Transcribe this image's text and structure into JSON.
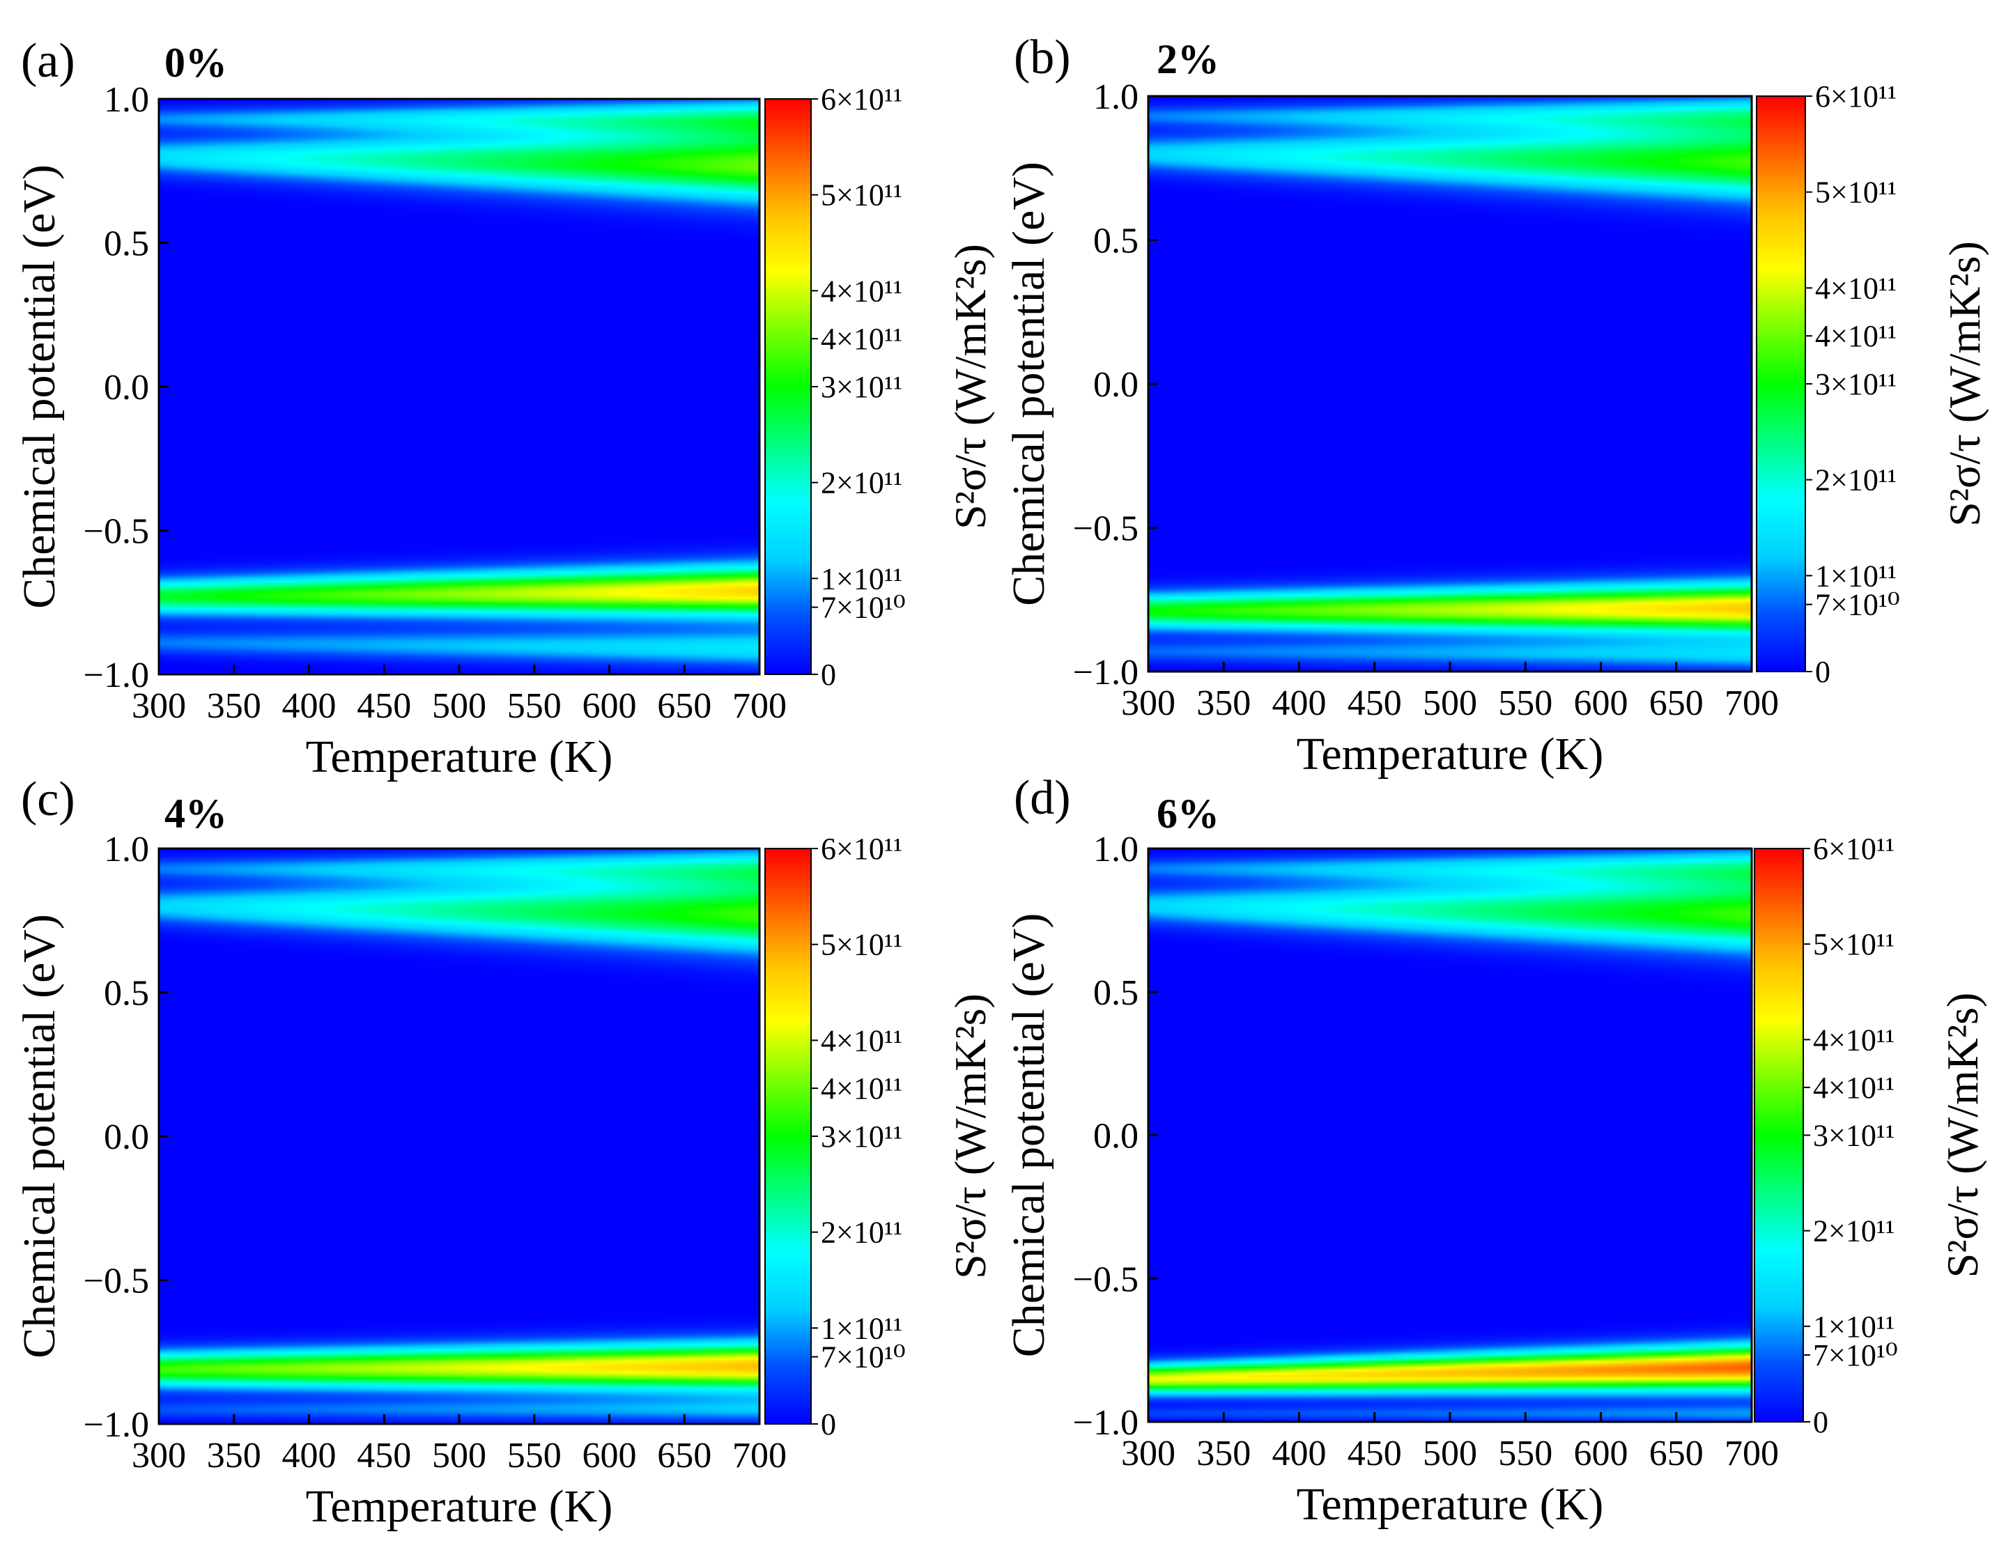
{
  "colors": {
    "scale": [
      "#0000ff",
      "#0050ff",
      "#00d0ff",
      "#00ffff",
      "#00ff80",
      "#00ff00",
      "#7dff00",
      "#ffff00",
      "#ffc000",
      "#ff6000",
      "#ff0000"
    ],
    "axis": "#000000"
  },
  "chart_data": [
    {
      "type": "heatmap",
      "panel_label": "(a)",
      "strain_label": "0%",
      "xlabel": "Temperature (K)",
      "ylabel": "Chemical potential (eV)",
      "xlim": [
        300,
        700
      ],
      "ylim": [
        -1.0,
        1.0
      ],
      "x_ticks": [
        300,
        350,
        400,
        450,
        500,
        550,
        600,
        650,
        700
      ],
      "y_ticks": [
        1.0,
        0.5,
        0.0,
        -0.5,
        -1.0
      ],
      "y_tick_labels": [
        "1.0",
        "0.5",
        "0.0",
        "−0.5",
        "−1.0"
      ],
      "colorbar": {
        "title": "S²σ/τ (W/mK²s)",
        "range": [
          0,
          600000000000.0
        ],
        "tick_values": [
          600000000000.0,
          500000000000.0,
          400000000000.0,
          350000000000.0,
          300000000000.0,
          200000000000.0,
          100000000000.0,
          70000000000.0,
          0
        ],
        "tick_labels": [
          "6×10¹¹",
          "5×10¹¹",
          "4×10¹¹",
          "4×10¹¹",
          "3×10¹¹",
          "2×10¹¹",
          "1×10¹¹",
          "7×10¹⁰",
          "0"
        ]
      },
      "features": [
        {
          "mu_300K": 0.93,
          "mu_700K": 0.93,
          "peak_300K": 90000000000.0,
          "peak_700K": 220000000000.0,
          "width_300K": 0.035,
          "width_700K": 0.065
        },
        {
          "mu_300K": 0.8,
          "mu_700K": 0.77,
          "peak_300K": 140000000000.0,
          "peak_700K": 350000000000.0,
          "width_300K": 0.06,
          "width_700K": 0.12
        },
        {
          "mu_300K": -0.73,
          "mu_700K": -0.71,
          "peak_300K": 280000000000.0,
          "peak_700K": 460000000000.0,
          "width_300K": 0.06,
          "width_700K": 0.085
        },
        {
          "mu_300K": -0.89,
          "mu_700K": -0.91,
          "peak_300K": 80000000000.0,
          "peak_700K": 150000000000.0,
          "width_300K": 0.04,
          "width_700K": 0.06
        }
      ]
    },
    {
      "type": "heatmap",
      "panel_label": "(b)",
      "strain_label": "2%",
      "xlabel": "Temperature (K)",
      "ylabel": "Chemical potential (eV)",
      "xlim": [
        300,
        700
      ],
      "ylim": [
        -1.0,
        1.0
      ],
      "x_ticks": [
        300,
        350,
        400,
        450,
        500,
        550,
        600,
        650,
        700
      ],
      "y_ticks": [
        1.0,
        0.5,
        0.0,
        -0.5,
        -1.0
      ],
      "y_tick_labels": [
        "1.0",
        "0.5",
        "0.0",
        "−0.5",
        "−1.0"
      ],
      "colorbar": {
        "title": "S²σ/τ (W/mK²s)",
        "range": [
          0,
          600000000000.0
        ],
        "tick_values": [
          600000000000.0,
          500000000000.0,
          400000000000.0,
          350000000000.0,
          300000000000.0,
          200000000000.0,
          100000000000.0,
          70000000000.0,
          0
        ],
        "tick_labels": [
          "6×10¹¹",
          "5×10¹¹",
          "4×10¹¹",
          "4×10¹¹",
          "3×10¹¹",
          "2×10¹¹",
          "1×10¹¹",
          "7×10¹⁰",
          "0"
        ]
      },
      "features": [
        {
          "mu_300K": 0.93,
          "mu_700K": 0.93,
          "peak_300K": 80000000000.0,
          "peak_700K": 200000000000.0,
          "width_300K": 0.035,
          "width_700K": 0.065
        },
        {
          "mu_300K": 0.8,
          "mu_700K": 0.77,
          "peak_300K": 130000000000.0,
          "peak_700K": 330000000000.0,
          "width_300K": 0.06,
          "width_700K": 0.12
        },
        {
          "mu_300K": -0.79,
          "mu_700K": -0.78,
          "peak_300K": 300000000000.0,
          "peak_700K": 470000000000.0,
          "width_300K": 0.06,
          "width_700K": 0.085
        },
        {
          "mu_300K": -0.93,
          "mu_700K": -0.94,
          "peak_300K": 70000000000.0,
          "peak_700K": 130000000000.0,
          "width_300K": 0.035,
          "width_700K": 0.05
        }
      ]
    },
    {
      "type": "heatmap",
      "panel_label": "(c)",
      "strain_label": "4%",
      "xlabel": "Temperature (K)",
      "ylabel": "Chemical potential (eV)",
      "xlim": [
        300,
        700
      ],
      "ylim": [
        -1.0,
        1.0
      ],
      "x_ticks": [
        300,
        350,
        400,
        450,
        500,
        550,
        600,
        650,
        700
      ],
      "y_ticks": [
        1.0,
        0.5,
        0.0,
        -0.5,
        -1.0
      ],
      "y_tick_labels": [
        "1.0",
        "0.5",
        "0.0",
        "−0.5",
        "−1.0"
      ],
      "colorbar": {
        "title": "S²σ/τ (W/mK²s)",
        "range": [
          0,
          600000000000.0
        ],
        "tick_values": [
          600000000000.0,
          500000000000.0,
          400000000000.0,
          350000000000.0,
          300000000000.0,
          200000000000.0,
          100000000000.0,
          70000000000.0,
          0
        ],
        "tick_labels": [
          "6×10¹¹",
          "5×10¹¹",
          "4×10¹¹",
          "4×10¹¹",
          "3×10¹¹",
          "2×10¹¹",
          "1×10¹¹",
          "7×10¹⁰",
          "0"
        ]
      },
      "features": [
        {
          "mu_300K": 0.93,
          "mu_700K": 0.93,
          "peak_300K": 80000000000.0,
          "peak_700K": 200000000000.0,
          "width_300K": 0.035,
          "width_700K": 0.065
        },
        {
          "mu_300K": 0.8,
          "mu_700K": 0.77,
          "peak_300K": 130000000000.0,
          "peak_700K": 330000000000.0,
          "width_300K": 0.06,
          "width_700K": 0.12
        },
        {
          "mu_300K": -0.81,
          "mu_700K": -0.8,
          "peak_300K": 330000000000.0,
          "peak_700K": 480000000000.0,
          "width_300K": 0.06,
          "width_700K": 0.08
        },
        {
          "mu_300K": -0.95,
          "mu_700K": -0.95,
          "peak_300K": 60000000000.0,
          "peak_700K": 110000000000.0,
          "width_300K": 0.03,
          "width_700K": 0.04
        }
      ]
    },
    {
      "type": "heatmap",
      "panel_label": "(d)",
      "strain_label": "6%",
      "xlabel": "Temperature (K)",
      "ylabel": "Chemical potential (eV)",
      "xlim": [
        300,
        700
      ],
      "ylim": [
        -1.0,
        1.0
      ],
      "x_ticks": [
        300,
        350,
        400,
        450,
        500,
        550,
        600,
        650,
        700
      ],
      "y_ticks": [
        1.0,
        0.5,
        0.0,
        -0.5,
        -1.0
      ],
      "y_tick_labels": [
        "1.0",
        "0.5",
        "0.0",
        "−0.5",
        "−1.0"
      ],
      "colorbar": {
        "title": "S²σ/τ (W/mK²s)",
        "range": [
          0,
          600000000000.0
        ],
        "tick_values": [
          600000000000.0,
          500000000000.0,
          400000000000.0,
          350000000000.0,
          300000000000.0,
          200000000000.0,
          100000000000.0,
          70000000000.0,
          0
        ],
        "tick_labels": [
          "6×10¹¹",
          "5×10¹¹",
          "4×10¹¹",
          "4×10¹¹",
          "3×10¹¹",
          "2×10¹¹",
          "1×10¹¹",
          "7×10¹⁰",
          "0"
        ]
      },
      "features": [
        {
          "mu_300K": 0.93,
          "mu_700K": 0.93,
          "peak_300K": 80000000000.0,
          "peak_700K": 200000000000.0,
          "width_300K": 0.035,
          "width_700K": 0.065
        },
        {
          "mu_300K": 0.8,
          "mu_700K": 0.77,
          "peak_300K": 130000000000.0,
          "peak_700K": 330000000000.0,
          "width_300K": 0.06,
          "width_700K": 0.12
        },
        {
          "mu_300K": -0.85,
          "mu_700K": -0.81,
          "peak_300K": 410000000000.0,
          "peak_700K": 540000000000.0,
          "width_300K": 0.05,
          "width_700K": 0.075
        },
        {
          "mu_300K": -0.97,
          "mu_700K": -0.97,
          "peak_300K": 50000000000.0,
          "peak_700K": 90000000000.0,
          "width_300K": 0.02,
          "width_700K": 0.03
        }
      ]
    }
  ]
}
